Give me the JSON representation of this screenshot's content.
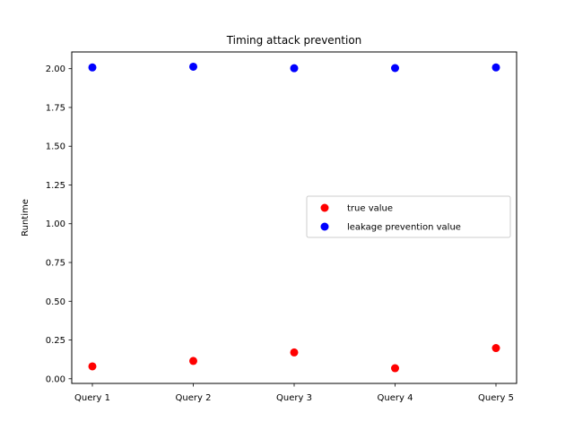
{
  "chart_data": {
    "type": "scatter",
    "title": "Timing attack prevention",
    "xlabel": "",
    "ylabel": "Runtime",
    "categories": [
      "Query 1",
      "Query 2",
      "Query 3",
      "Query 4",
      "Query 5"
    ],
    "series": [
      {
        "name": "true value",
        "color": "#ff0000",
        "values": [
          0.08,
          0.115,
          0.17,
          0.068,
          0.198
        ]
      },
      {
        "name": "leakage prevention value",
        "color": "#0000ff",
        "values": [
          2.008,
          2.013,
          2.003,
          2.004,
          2.008
        ]
      }
    ],
    "ylim": [
      -0.03,
      2.108
    ],
    "yticks": [
      "0.00",
      "0.25",
      "0.50",
      "0.75",
      "1.00",
      "1.25",
      "1.50",
      "1.75",
      "2.00"
    ],
    "grid": false,
    "legend_position": "center-right"
  }
}
